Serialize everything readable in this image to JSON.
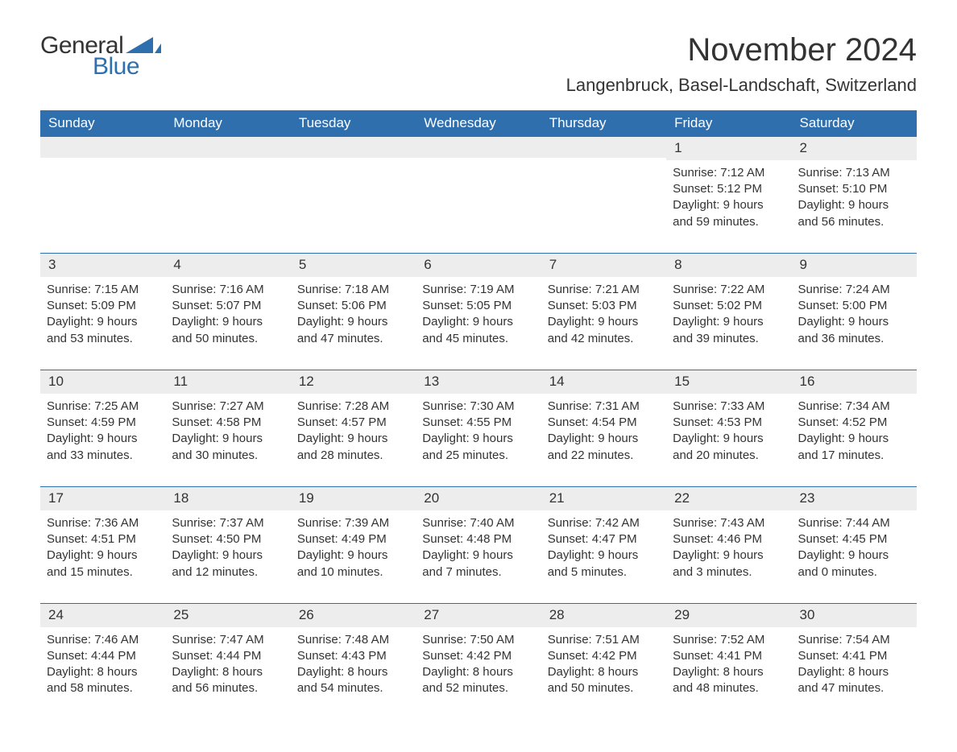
{
  "brand": {
    "word1": "General",
    "word2": "Blue",
    "logo_color": "#2f6fad",
    "text_color": "#333333"
  },
  "title": "November 2024",
  "location": "Langenbruck, Basel-Landschaft, Switzerland",
  "colors": {
    "header_bg": "#2f6fad",
    "header_text": "#ffffff",
    "daynum_bg": "#ededed",
    "cell_border": "#2f6fad",
    "body_text": "#333333",
    "page_bg": "#ffffff"
  },
  "fonts": {
    "title_size_pt": 30,
    "location_size_pt": 17,
    "dayhead_size_pt": 13,
    "cell_size_pt": 11
  },
  "day_headers": [
    "Sunday",
    "Monday",
    "Tuesday",
    "Wednesday",
    "Thursday",
    "Friday",
    "Saturday"
  ],
  "weeks": [
    [
      null,
      null,
      null,
      null,
      null,
      {
        "d": "1",
        "sunrise": "Sunrise: 7:12 AM",
        "sunset": "Sunset: 5:12 PM",
        "dl1": "Daylight: 9 hours",
        "dl2": "and 59 minutes."
      },
      {
        "d": "2",
        "sunrise": "Sunrise: 7:13 AM",
        "sunset": "Sunset: 5:10 PM",
        "dl1": "Daylight: 9 hours",
        "dl2": "and 56 minutes."
      }
    ],
    [
      {
        "d": "3",
        "sunrise": "Sunrise: 7:15 AM",
        "sunset": "Sunset: 5:09 PM",
        "dl1": "Daylight: 9 hours",
        "dl2": "and 53 minutes."
      },
      {
        "d": "4",
        "sunrise": "Sunrise: 7:16 AM",
        "sunset": "Sunset: 5:07 PM",
        "dl1": "Daylight: 9 hours",
        "dl2": "and 50 minutes."
      },
      {
        "d": "5",
        "sunrise": "Sunrise: 7:18 AM",
        "sunset": "Sunset: 5:06 PM",
        "dl1": "Daylight: 9 hours",
        "dl2": "and 47 minutes."
      },
      {
        "d": "6",
        "sunrise": "Sunrise: 7:19 AM",
        "sunset": "Sunset: 5:05 PM",
        "dl1": "Daylight: 9 hours",
        "dl2": "and 45 minutes."
      },
      {
        "d": "7",
        "sunrise": "Sunrise: 7:21 AM",
        "sunset": "Sunset: 5:03 PM",
        "dl1": "Daylight: 9 hours",
        "dl2": "and 42 minutes."
      },
      {
        "d": "8",
        "sunrise": "Sunrise: 7:22 AM",
        "sunset": "Sunset: 5:02 PM",
        "dl1": "Daylight: 9 hours",
        "dl2": "and 39 minutes."
      },
      {
        "d": "9",
        "sunrise": "Sunrise: 7:24 AM",
        "sunset": "Sunset: 5:00 PM",
        "dl1": "Daylight: 9 hours",
        "dl2": "and 36 minutes."
      }
    ],
    [
      {
        "d": "10",
        "sunrise": "Sunrise: 7:25 AM",
        "sunset": "Sunset: 4:59 PM",
        "dl1": "Daylight: 9 hours",
        "dl2": "and 33 minutes."
      },
      {
        "d": "11",
        "sunrise": "Sunrise: 7:27 AM",
        "sunset": "Sunset: 4:58 PM",
        "dl1": "Daylight: 9 hours",
        "dl2": "and 30 minutes."
      },
      {
        "d": "12",
        "sunrise": "Sunrise: 7:28 AM",
        "sunset": "Sunset: 4:57 PM",
        "dl1": "Daylight: 9 hours",
        "dl2": "and 28 minutes."
      },
      {
        "d": "13",
        "sunrise": "Sunrise: 7:30 AM",
        "sunset": "Sunset: 4:55 PM",
        "dl1": "Daylight: 9 hours",
        "dl2": "and 25 minutes."
      },
      {
        "d": "14",
        "sunrise": "Sunrise: 7:31 AM",
        "sunset": "Sunset: 4:54 PM",
        "dl1": "Daylight: 9 hours",
        "dl2": "and 22 minutes."
      },
      {
        "d": "15",
        "sunrise": "Sunrise: 7:33 AM",
        "sunset": "Sunset: 4:53 PM",
        "dl1": "Daylight: 9 hours",
        "dl2": "and 20 minutes."
      },
      {
        "d": "16",
        "sunrise": "Sunrise: 7:34 AM",
        "sunset": "Sunset: 4:52 PM",
        "dl1": "Daylight: 9 hours",
        "dl2": "and 17 minutes."
      }
    ],
    [
      {
        "d": "17",
        "sunrise": "Sunrise: 7:36 AM",
        "sunset": "Sunset: 4:51 PM",
        "dl1": "Daylight: 9 hours",
        "dl2": "and 15 minutes."
      },
      {
        "d": "18",
        "sunrise": "Sunrise: 7:37 AM",
        "sunset": "Sunset: 4:50 PM",
        "dl1": "Daylight: 9 hours",
        "dl2": "and 12 minutes."
      },
      {
        "d": "19",
        "sunrise": "Sunrise: 7:39 AM",
        "sunset": "Sunset: 4:49 PM",
        "dl1": "Daylight: 9 hours",
        "dl2": "and 10 minutes."
      },
      {
        "d": "20",
        "sunrise": "Sunrise: 7:40 AM",
        "sunset": "Sunset: 4:48 PM",
        "dl1": "Daylight: 9 hours",
        "dl2": "and 7 minutes."
      },
      {
        "d": "21",
        "sunrise": "Sunrise: 7:42 AM",
        "sunset": "Sunset: 4:47 PM",
        "dl1": "Daylight: 9 hours",
        "dl2": "and 5 minutes."
      },
      {
        "d": "22",
        "sunrise": "Sunrise: 7:43 AM",
        "sunset": "Sunset: 4:46 PM",
        "dl1": "Daylight: 9 hours",
        "dl2": "and 3 minutes."
      },
      {
        "d": "23",
        "sunrise": "Sunrise: 7:44 AM",
        "sunset": "Sunset: 4:45 PM",
        "dl1": "Daylight: 9 hours",
        "dl2": "and 0 minutes."
      }
    ],
    [
      {
        "d": "24",
        "sunrise": "Sunrise: 7:46 AM",
        "sunset": "Sunset: 4:44 PM",
        "dl1": "Daylight: 8 hours",
        "dl2": "and 58 minutes."
      },
      {
        "d": "25",
        "sunrise": "Sunrise: 7:47 AM",
        "sunset": "Sunset: 4:44 PM",
        "dl1": "Daylight: 8 hours",
        "dl2": "and 56 minutes."
      },
      {
        "d": "26",
        "sunrise": "Sunrise: 7:48 AM",
        "sunset": "Sunset: 4:43 PM",
        "dl1": "Daylight: 8 hours",
        "dl2": "and 54 minutes."
      },
      {
        "d": "27",
        "sunrise": "Sunrise: 7:50 AM",
        "sunset": "Sunset: 4:42 PM",
        "dl1": "Daylight: 8 hours",
        "dl2": "and 52 minutes."
      },
      {
        "d": "28",
        "sunrise": "Sunrise: 7:51 AM",
        "sunset": "Sunset: 4:42 PM",
        "dl1": "Daylight: 8 hours",
        "dl2": "and 50 minutes."
      },
      {
        "d": "29",
        "sunrise": "Sunrise: 7:52 AM",
        "sunset": "Sunset: 4:41 PM",
        "dl1": "Daylight: 8 hours",
        "dl2": "and 48 minutes."
      },
      {
        "d": "30",
        "sunrise": "Sunrise: 7:54 AM",
        "sunset": "Sunset: 4:41 PM",
        "dl1": "Daylight: 8 hours",
        "dl2": "and 47 minutes."
      }
    ]
  ]
}
